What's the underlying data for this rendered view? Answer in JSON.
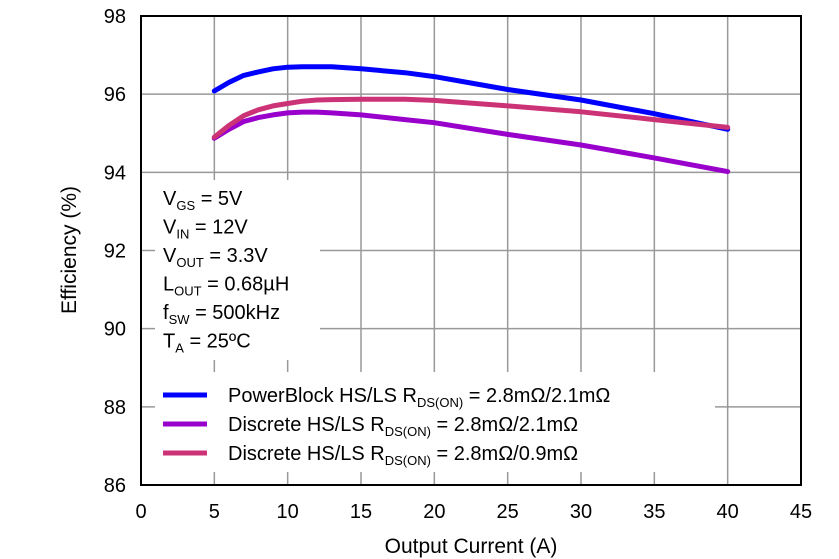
{
  "chart_data": {
    "type": "line",
    "xlabel": "Output Current (A)",
    "ylabel": "Efficiency (%)",
    "xlim": [
      0,
      45
    ],
    "ylim": [
      86,
      98
    ],
    "xticks": [
      0,
      5,
      10,
      15,
      20,
      25,
      30,
      35,
      40,
      45
    ],
    "yticks": [
      86,
      88,
      90,
      92,
      94,
      96,
      98
    ],
    "grid": true,
    "legend_placement": "bottom-left",
    "annotation": [
      {
        "main": "V",
        "sub": "GS",
        "rest": " = 5V"
      },
      {
        "main": "V",
        "sub": "IN",
        "rest": " = 12V"
      },
      {
        "main": "V",
        "sub": "OUT",
        "rest": " = 3.3V"
      },
      {
        "main": "L",
        "sub": "OUT",
        "rest": " = 0.68µH"
      },
      {
        "main": "f",
        "sub": "SW",
        "rest": " = 500kHz"
      },
      {
        "main": "T",
        "sub": "A",
        "rest": " = 25ºC"
      }
    ],
    "series": [
      {
        "name": "PowerBlock  HS/LS R_DS(ON) = 2.8mΩ/2.1mΩ",
        "label_pre": "PowerBlock  HS/LS R",
        "label_sub": "DS(ON)",
        "label_post": " = 2.8mΩ/2.1mΩ",
        "color": "#0000FF",
        "x": [
          5,
          6,
          7,
          8,
          9,
          10,
          11,
          12,
          13,
          15,
          18,
          20,
          25,
          30,
          35,
          40
        ],
        "y": [
          96.08,
          96.3,
          96.48,
          96.57,
          96.65,
          96.69,
          96.7,
          96.7,
          96.7,
          96.65,
          96.55,
          96.45,
          96.12,
          95.85,
          95.5,
          95.1
        ]
      },
      {
        "name": "Discrete  HS/LS R_DS(ON) = 2.8mΩ/2.1mΩ",
        "label_pre": "Discrete  HS/LS R",
        "label_sub": "DS(ON)",
        "label_post": " = 2.8mΩ/2.1mΩ",
        "color": "#9900CC",
        "x": [
          5,
          6,
          7,
          8,
          9,
          10,
          11,
          12,
          13,
          15,
          18,
          20,
          25,
          30,
          35,
          40
        ],
        "y": [
          94.87,
          95.1,
          95.3,
          95.4,
          95.47,
          95.52,
          95.54,
          95.54,
          95.52,
          95.47,
          95.35,
          95.27,
          94.97,
          94.7,
          94.37,
          94.02
        ]
      },
      {
        "name": "Discrete  HS/LS R_DS(ON) = 2.8mΩ/0.9mΩ",
        "label_pre": "Discrete  HS/LS R",
        "label_sub": "DS(ON)",
        "label_post": " = 2.8mΩ/0.9mΩ",
        "color": "#CC3377",
        "x": [
          5,
          6,
          7,
          8,
          9,
          10,
          11,
          12,
          13,
          15,
          18,
          20,
          25,
          30,
          35,
          40
        ],
        "y": [
          94.9,
          95.2,
          95.45,
          95.6,
          95.7,
          95.76,
          95.82,
          95.85,
          95.86,
          95.87,
          95.87,
          95.84,
          95.7,
          95.55,
          95.35,
          95.15
        ]
      }
    ]
  }
}
